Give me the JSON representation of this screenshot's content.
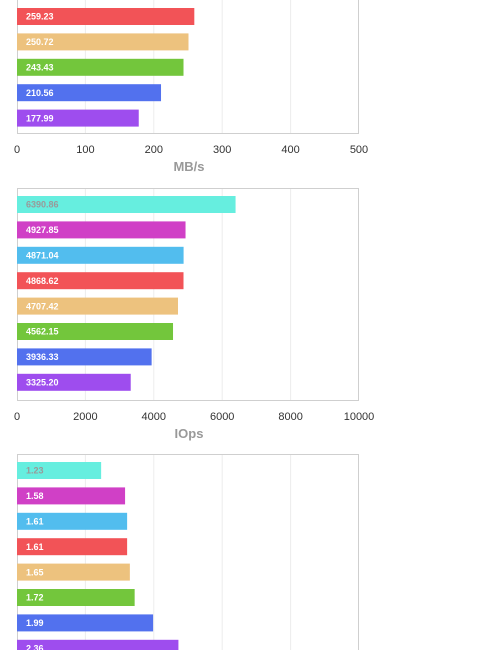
{
  "chart_data": [
    {
      "type": "bar",
      "orientation": "horizontal",
      "xlabel": "MB/s",
      "xlim": [
        0,
        500
      ],
      "xticks": [
        "0",
        "100",
        "200",
        "300",
        "400",
        "500"
      ],
      "grid": true,
      "bars": [
        {
          "value": 259.23,
          "label": "259.23",
          "color": "#f25357"
        },
        {
          "value": 250.72,
          "label": "250.72",
          "color": "#edc27e"
        },
        {
          "value": 243.43,
          "label": "243.43",
          "color": "#73c63c"
        },
        {
          "value": 210.56,
          "label": "210.56",
          "color": "#5271ee"
        },
        {
          "value": 177.99,
          "label": "177.99",
          "color": "#9e4dee"
        }
      ]
    },
    {
      "type": "bar",
      "orientation": "horizontal",
      "xlabel": "IOps",
      "xlim": [
        0,
        10000
      ],
      "xticks": [
        "0",
        "2000",
        "4000",
        "6000",
        "8000",
        "10000"
      ],
      "grid": true,
      "bars": [
        {
          "value": 6390.86,
          "label": "6390.86",
          "color": "#66eedf"
        },
        {
          "value": 4927.85,
          "label": "4927.85",
          "color": "#d040c6"
        },
        {
          "value": 4871.04,
          "label": "4871.04",
          "color": "#52bdee"
        },
        {
          "value": 4868.62,
          "label": "4868.62",
          "color": "#f25357"
        },
        {
          "value": 4707.42,
          "label": "4707.42",
          "color": "#edc27e"
        },
        {
          "value": 4562.15,
          "label": "4562.15",
          "color": "#73c63c"
        },
        {
          "value": 3936.33,
          "label": "3936.33",
          "color": "#5271ee"
        },
        {
          "value": 3325.2,
          "label": "3325.20",
          "color": "#9e4dee"
        }
      ]
    },
    {
      "type": "bar",
      "orientation": "horizontal",
      "xlim": [
        0,
        5
      ],
      "grid": true,
      "bars": [
        {
          "value": 1.23,
          "label": "1.23",
          "color": "#66eedf"
        },
        {
          "value": 1.58,
          "label": "1.58",
          "color": "#d040c6"
        },
        {
          "value": 1.61,
          "label": "1.61",
          "color": "#52bdee"
        },
        {
          "value": 1.61,
          "label": "1.61",
          "color": "#f25357"
        },
        {
          "value": 1.65,
          "label": "1.65",
          "color": "#edc27e"
        },
        {
          "value": 1.72,
          "label": "1.72",
          "color": "#73c63c"
        },
        {
          "value": 1.99,
          "label": "1.99",
          "color": "#5271ee"
        },
        {
          "value": 2.36,
          "label": "2.36",
          "color": "#9e4dee"
        }
      ]
    }
  ]
}
